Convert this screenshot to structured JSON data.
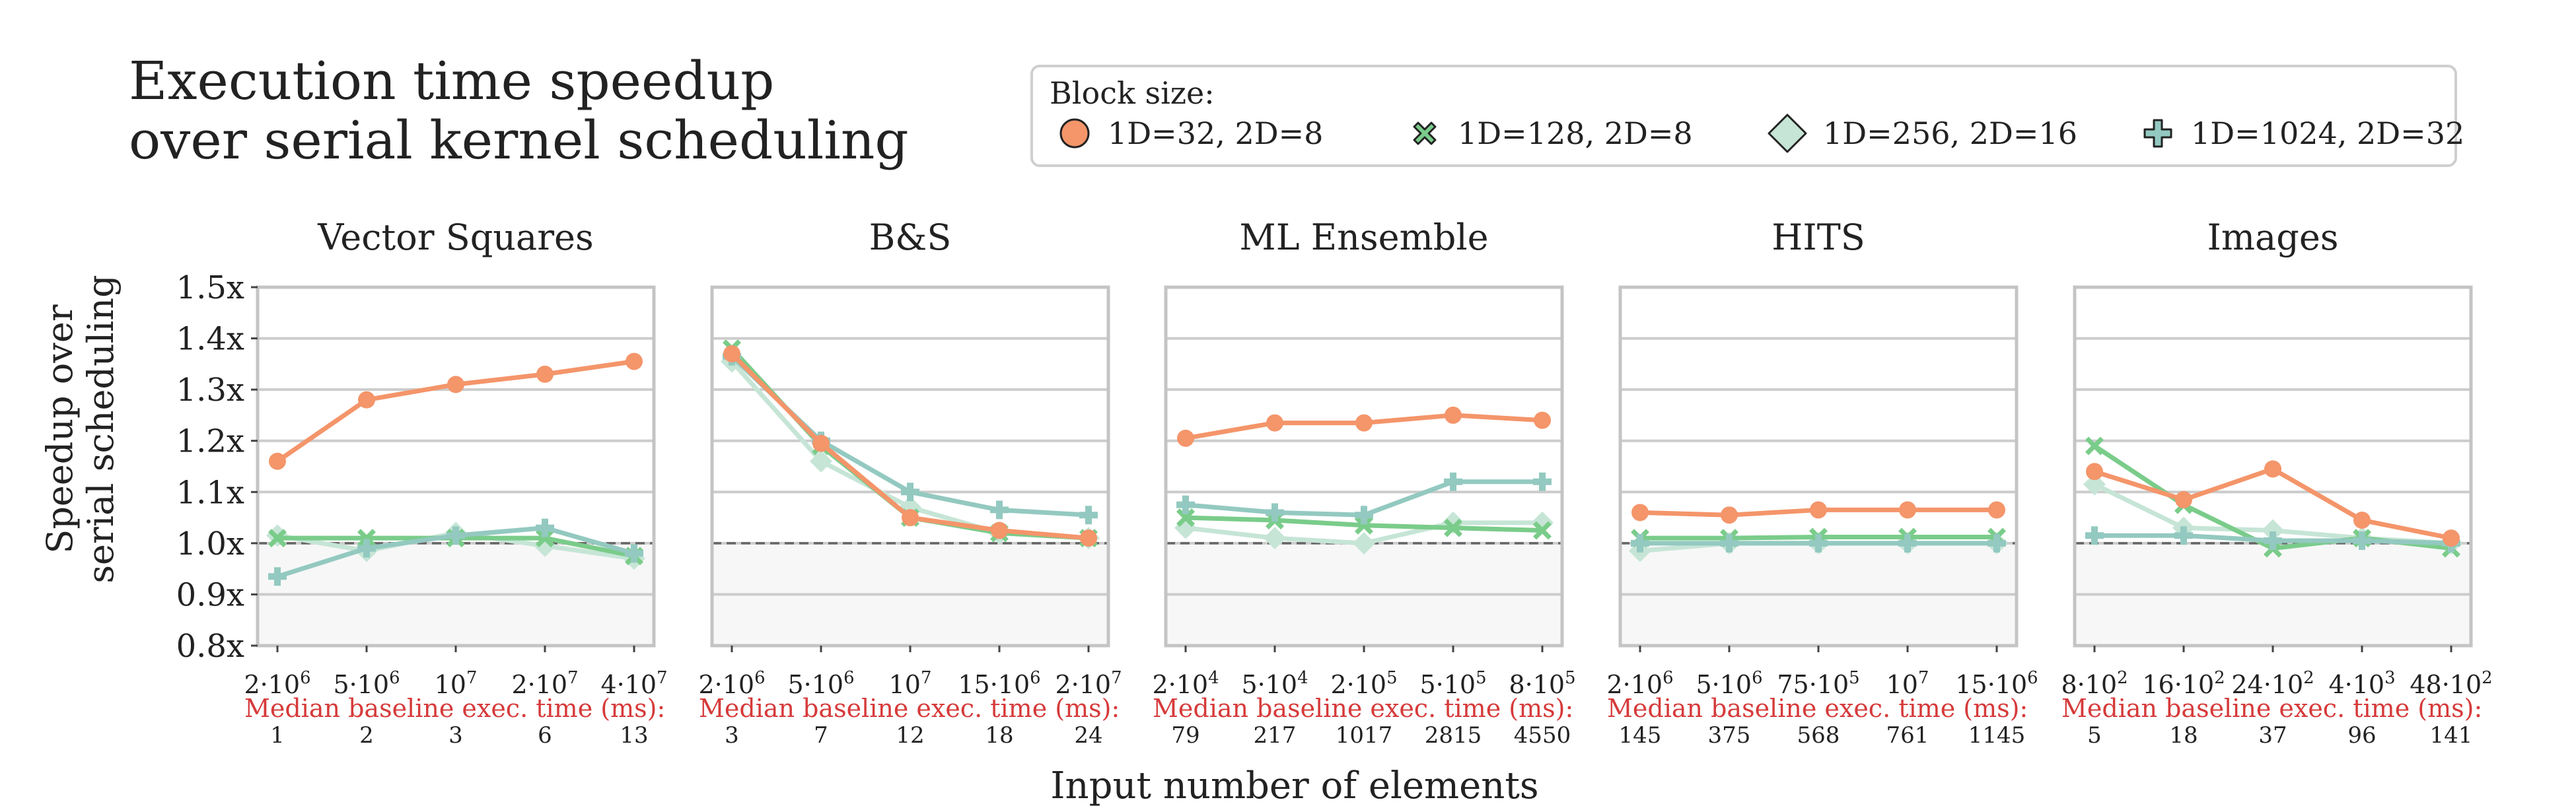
{
  "title_lines": [
    "Execution time speedup",
    "over serial kernel scheduling"
  ],
  "legend": {
    "title": "Block size:",
    "items": [
      {
        "label": "1D=32, 2D=8",
        "marker": "circle",
        "color": "#f4956a"
      },
      {
        "label": "1D=128, 2D=8",
        "marker": "x",
        "color": "#7acc8a"
      },
      {
        "label": "1D=256, 2D=16",
        "marker": "diamond",
        "color": "#c6e5d6"
      },
      {
        "label": "1D=1024, 2D=32",
        "marker": "plus",
        "color": "#93c9c0"
      }
    ]
  },
  "xlabel": "Input number of elements",
  "ylabel_lines": [
    "Speedup over",
    "serial scheduling"
  ],
  "baseline_label": "Median baseline exec. time (ms):",
  "chart_data": [
    {
      "type": "line",
      "title": "Vector Squares",
      "categories": [
        "2·10^6",
        "5·10^6",
        "10^7",
        "2·10^7",
        "4·10^7"
      ],
      "baseline_times": [
        "1",
        "2",
        "3",
        "6",
        "13"
      ],
      "ylim": [
        0.8,
        1.5
      ],
      "yticks": [
        "0.8x",
        "0.9x",
        "1.0x",
        "1.1x",
        "1.2x",
        "1.3x",
        "1.4x",
        "1.5x"
      ],
      "series": [
        {
          "name": "1D=32, 2D=8",
          "values": [
            1.16,
            1.28,
            1.31,
            1.33,
            1.355
          ]
        },
        {
          "name": "1D=128, 2D=8",
          "values": [
            1.01,
            1.01,
            1.01,
            1.01,
            0.975
          ]
        },
        {
          "name": "1D=256, 2D=16",
          "values": [
            1.015,
            0.985,
            1.02,
            0.995,
            0.97
          ]
        },
        {
          "name": "1D=1024, 2D=32",
          "values": [
            0.935,
            0.99,
            1.015,
            1.03,
            0.98
          ]
        }
      ]
    },
    {
      "type": "line",
      "title": "B&S",
      "categories": [
        "2·10^6",
        "5·10^6",
        "10^7",
        "15·10^6",
        "2·10^7"
      ],
      "baseline_times": [
        "3",
        "7",
        "12",
        "18",
        "24"
      ],
      "ylim": [
        0.8,
        1.5
      ],
      "series": [
        {
          "name": "1D=32, 2D=8",
          "values": [
            1.37,
            1.195,
            1.05,
            1.025,
            1.01
          ]
        },
        {
          "name": "1D=128, 2D=8",
          "values": [
            1.38,
            1.19,
            1.05,
            1.02,
            1.01
          ]
        },
        {
          "name": "1D=256, 2D=16",
          "values": [
            1.355,
            1.16,
            1.07,
            1.02,
            1.01
          ]
        },
        {
          "name": "1D=1024, 2D=32",
          "values": [
            1.365,
            1.2,
            1.1,
            1.065,
            1.055
          ]
        }
      ]
    },
    {
      "type": "line",
      "title": "ML Ensemble",
      "categories": [
        "2·10^4",
        "5·10^4",
        "2·10^5",
        "5·10^5",
        "8·10^5"
      ],
      "baseline_times": [
        "79",
        "217",
        "1017",
        "2815",
        "4550"
      ],
      "ylim": [
        0.8,
        1.5
      ],
      "series": [
        {
          "name": "1D=32, 2D=8",
          "values": [
            1.205,
            1.235,
            1.235,
            1.25,
            1.24
          ]
        },
        {
          "name": "1D=128, 2D=8",
          "values": [
            1.05,
            1.045,
            1.035,
            1.03,
            1.025
          ]
        },
        {
          "name": "1D=256, 2D=16",
          "values": [
            1.03,
            1.01,
            1.0,
            1.04,
            1.04
          ]
        },
        {
          "name": "1D=1024, 2D=32",
          "values": [
            1.075,
            1.06,
            1.055,
            1.12,
            1.12
          ]
        }
      ]
    },
    {
      "type": "line",
      "title": "HITS",
      "categories": [
        "2·10^6",
        "5·10^6",
        "75·10^5",
        "10^7",
        "15·10^6"
      ],
      "baseline_times": [
        "145",
        "375",
        "568",
        "761",
        "1145"
      ],
      "ylim": [
        0.8,
        1.5
      ],
      "series": [
        {
          "name": "1D=32, 2D=8",
          "values": [
            1.06,
            1.055,
            1.065,
            1.065,
            1.065
          ]
        },
        {
          "name": "1D=128, 2D=8",
          "values": [
            1.01,
            1.01,
            1.012,
            1.012,
            1.012
          ]
        },
        {
          "name": "1D=256, 2D=16",
          "values": [
            0.985,
            1.0,
            1.0,
            1.0,
            1.0
          ]
        },
        {
          "name": "1D=1024, 2D=32",
          "values": [
            1.0,
            1.0,
            1.0,
            1.0,
            1.0
          ]
        }
      ]
    },
    {
      "type": "line",
      "title": "Images",
      "categories": [
        "8·10^2",
        "16·10^2",
        "24·10^2",
        "4·10^3",
        "48·10^2"
      ],
      "baseline_times": [
        "5",
        "18",
        "37",
        "96",
        "141"
      ],
      "ylim": [
        0.8,
        1.5
      ],
      "series": [
        {
          "name": "1D=32, 2D=8",
          "values": [
            1.14,
            1.085,
            1.145,
            1.045,
            1.01
          ]
        },
        {
          "name": "1D=128, 2D=8",
          "values": [
            1.19,
            1.075,
            0.99,
            1.01,
            0.99
          ]
        },
        {
          "name": "1D=256, 2D=16",
          "values": [
            1.115,
            1.03,
            1.025,
            1.01,
            1.0
          ]
        },
        {
          "name": "1D=1024, 2D=32",
          "values": [
            1.015,
            1.015,
            1.005,
            1.005,
            1.0
          ]
        }
      ]
    }
  ]
}
